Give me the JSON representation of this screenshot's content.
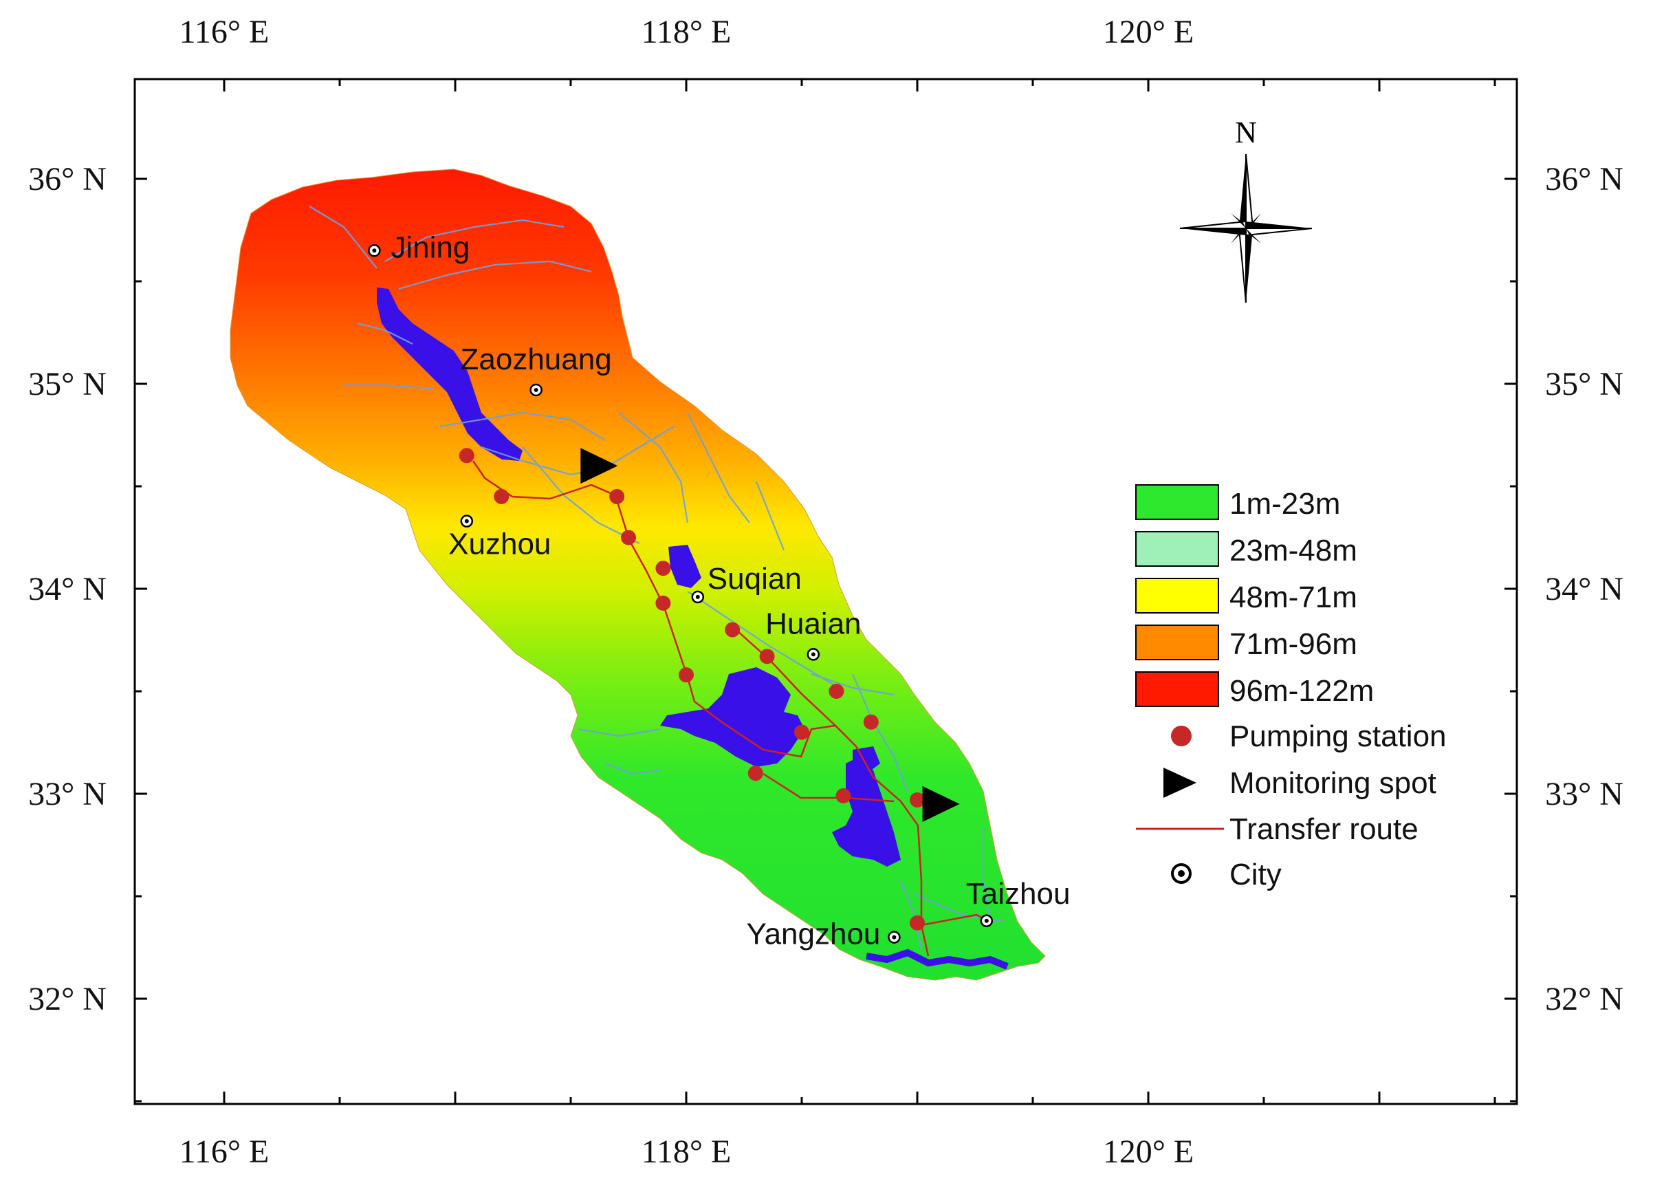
{
  "axes": {
    "lon_ticks": [
      {
        "value": 116,
        "label": "116° E"
      },
      {
        "value": 118,
        "label": "118° E"
      },
      {
        "value": 120,
        "label": "120° E"
      }
    ],
    "lat_ticks": [
      {
        "value": 36,
        "label": "36° N"
      },
      {
        "value": 35,
        "label": "35° N"
      },
      {
        "value": 34,
        "label": "34° N"
      },
      {
        "value": 33,
        "label": "33° N"
      },
      {
        "value": 32,
        "label": "32° N"
      }
    ]
  },
  "north_arrow": {
    "label": "N"
  },
  "legend": {
    "elevation_classes": [
      {
        "label": "1m-23m",
        "color": "#2ee82e"
      },
      {
        "label": "23m-48m",
        "color": "#9ff0b8"
      },
      {
        "label": "48m-71m",
        "color": "#ffff00"
      },
      {
        "label": "71m-96m",
        "color": "#ff8a00"
      },
      {
        "label": "96m-122m",
        "color": "#ff1a00"
      }
    ],
    "symbols": [
      {
        "label": "Pumping station",
        "icon": "red-dot-icon",
        "color": "#c62828"
      },
      {
        "label": "Monitoring spot",
        "icon": "black-triangle-icon",
        "color": "#000000"
      },
      {
        "label": "Transfer route",
        "icon": "red-line-icon",
        "color": "#cc2222"
      },
      {
        "label": "City",
        "icon": "city-dot-icon",
        "color": "#000000"
      }
    ]
  },
  "cities": [
    {
      "name": "Jining",
      "lon": 116.65,
      "lat": 35.65
    },
    {
      "name": "Zaozhuang",
      "lon": 117.35,
      "lat": 34.97
    },
    {
      "name": "Xuzhou",
      "lon": 117.05,
      "lat": 34.33
    },
    {
      "name": "Suqian",
      "lon": 118.05,
      "lat": 33.96
    },
    {
      "name": "Huaian",
      "lon": 118.55,
      "lat": 33.68
    },
    {
      "name": "Taizhou",
      "lon": 119.3,
      "lat": 32.38
    },
    {
      "name": "Yangzhou",
      "lon": 118.9,
      "lat": 32.3
    }
  ],
  "pumping_stations": [
    {
      "lon": 117.05,
      "lat": 34.65
    },
    {
      "lon": 117.2,
      "lat": 34.45
    },
    {
      "lon": 117.7,
      "lat": 34.45
    },
    {
      "lon": 117.75,
      "lat": 34.25
    },
    {
      "lon": 117.9,
      "lat": 34.1
    },
    {
      "lon": 117.9,
      "lat": 33.93
    },
    {
      "lon": 118.2,
      "lat": 33.8
    },
    {
      "lon": 118.35,
      "lat": 33.67
    },
    {
      "lon": 118.0,
      "lat": 33.58
    },
    {
      "lon": 118.65,
      "lat": 33.5
    },
    {
      "lon": 118.8,
      "lat": 33.35
    },
    {
      "lon": 118.5,
      "lat": 33.3
    },
    {
      "lon": 118.3,
      "lat": 33.1
    },
    {
      "lon": 118.68,
      "lat": 32.99
    },
    {
      "lon": 119.0,
      "lat": 32.97
    },
    {
      "lon": 119.0,
      "lat": 32.37
    }
  ],
  "monitoring_spots": [
    {
      "lon": 117.62,
      "lat": 34.6
    },
    {
      "lon": 119.1,
      "lat": 32.95
    }
  ]
}
